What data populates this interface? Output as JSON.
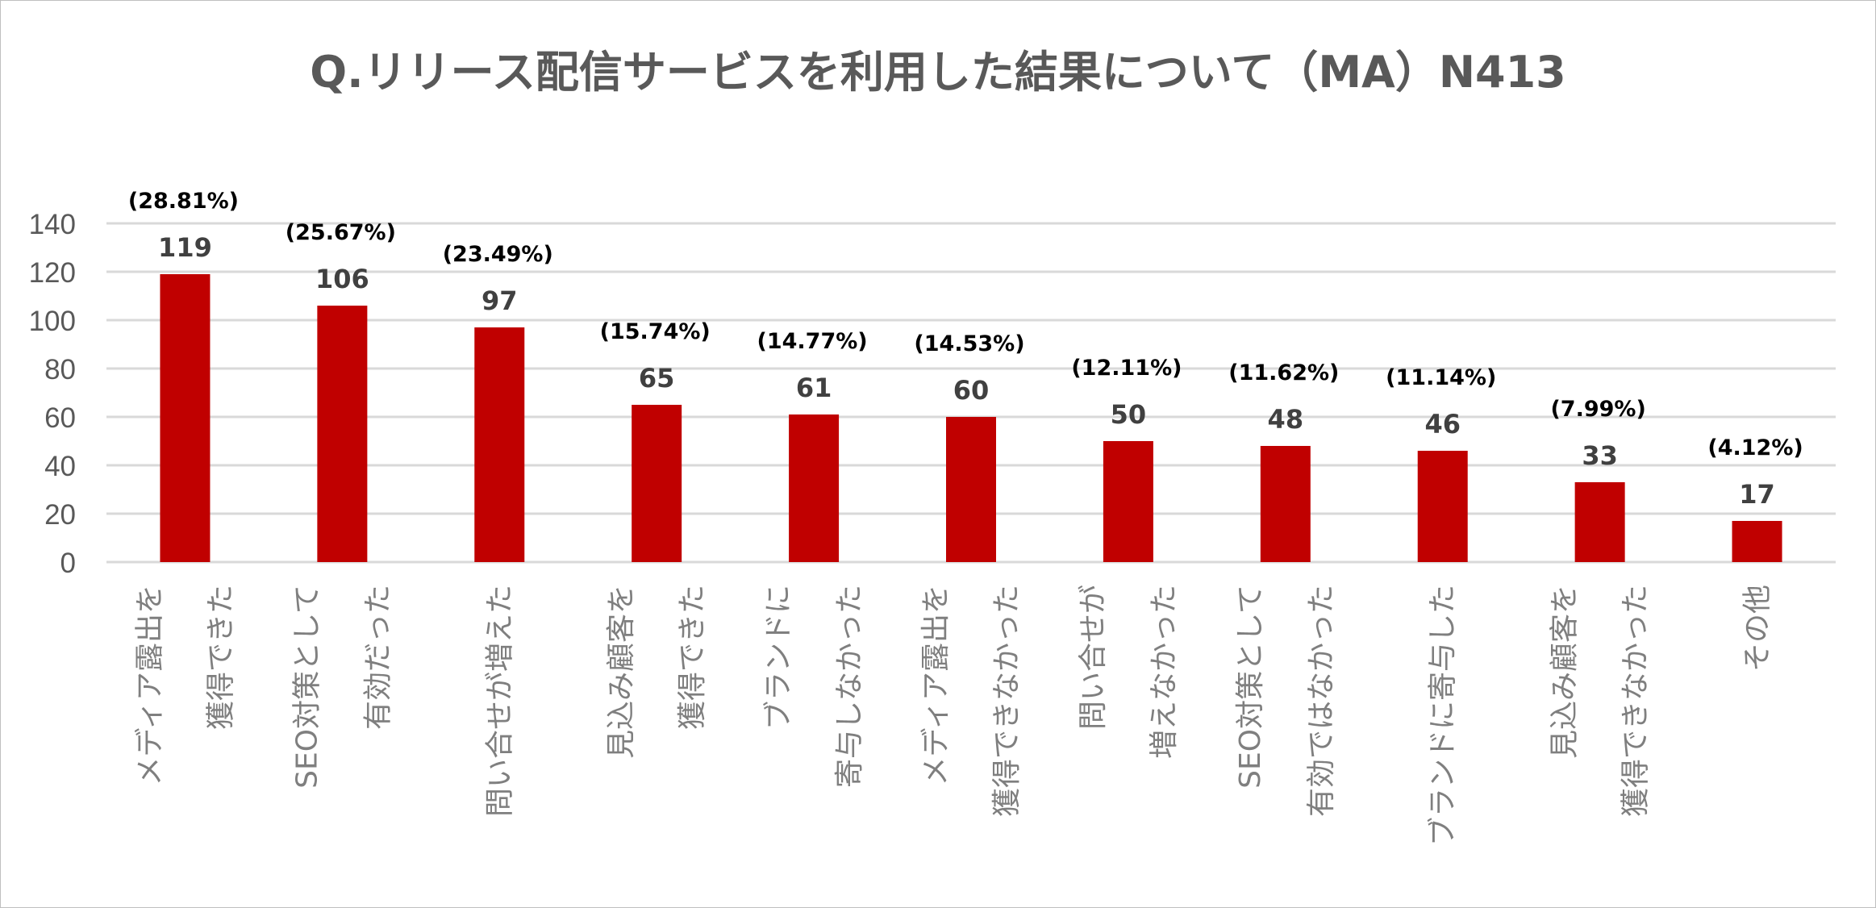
{
  "chart_data": {
    "type": "bar",
    "title": "Q.リリース配信サービスを利用した結果について（MA）N413",
    "xlabel": "",
    "ylabel": "",
    "ylim": [
      0,
      140
    ],
    "yticks": [
      0,
      20,
      40,
      60,
      80,
      100,
      120,
      140
    ],
    "grid": true,
    "legend": "none",
    "bar_color": "#c00000",
    "categories": [
      [
        "メディア露出を",
        "獲得できた"
      ],
      [
        "SEO対策として",
        "有効だった"
      ],
      [
        "問い合せが増えた"
      ],
      [
        "見込み顧客を",
        "獲得できた"
      ],
      [
        "ブランドに",
        "寄与しなかった"
      ],
      [
        "メディア露出を",
        "獲得できなかった"
      ],
      [
        "問い合せが",
        "増えなかった"
      ],
      [
        "SEO対策として",
        "有効ではなかった"
      ],
      [
        "ブランドに寄与した"
      ],
      [
        "見込み顧客を",
        "獲得できなかった"
      ],
      [
        "その他"
      ]
    ],
    "values": [
      119,
      106,
      97,
      65,
      61,
      60,
      50,
      48,
      46,
      33,
      17
    ],
    "percent_labels": [
      "(28.81%)",
      "(25.67%)",
      "(23.49%)",
      "(15.74%)",
      "(14.77%)",
      "(14.53%)",
      "(12.11%)",
      "(11.62%)",
      "(11.14%)",
      "(7.99%)",
      "(4.12%)"
    ]
  }
}
